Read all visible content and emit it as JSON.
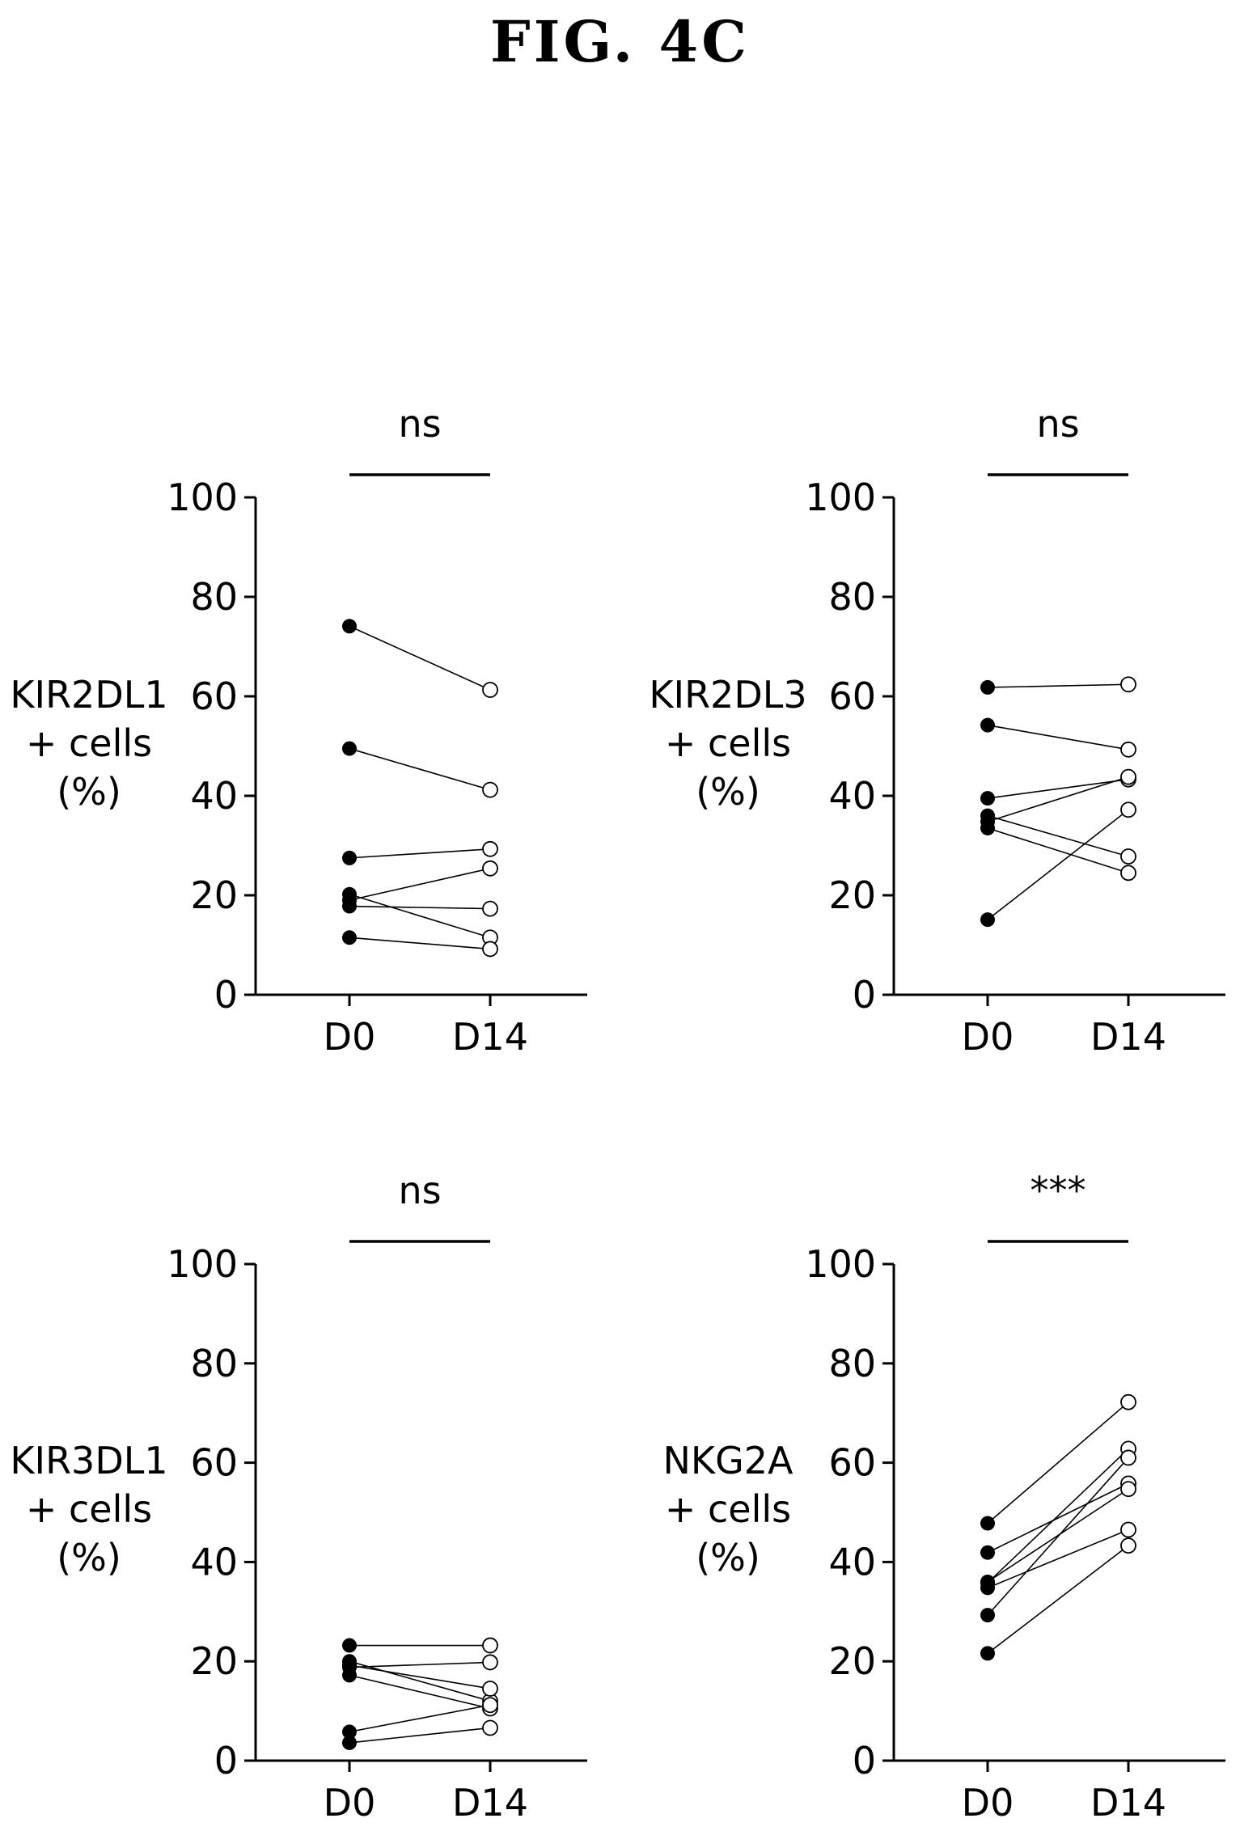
{
  "figure_title": "FIG. 4C",
  "chart_data": [
    {
      "type": "scatter",
      "paired": true,
      "title": "",
      "ylabel_lines": [
        "KIR2DL1",
        "+ cells",
        "(%)"
      ],
      "categories": [
        "D0",
        "D14"
      ],
      "ylim": [
        0,
        100
      ],
      "yticks": [
        0,
        20,
        40,
        60,
        80,
        100
      ],
      "significance": "ns",
      "pairs": [
        {
          "D0": 74.1,
          "D14": 61.3
        },
        {
          "D0": 49.5,
          "D14": 41.2
        },
        {
          "D0": 27.5,
          "D14": 29.3
        },
        {
          "D0": 20.2,
          "D14": 11.5
        },
        {
          "D0": 19.0,
          "D14": 25.4
        },
        {
          "D0": 17.8,
          "D14": 17.3
        },
        {
          "D0": 11.5,
          "D14": 9.2
        }
      ]
    },
    {
      "type": "scatter",
      "paired": true,
      "title": "",
      "ylabel_lines": [
        "KIR2DL3",
        "+ cells",
        "(%)"
      ],
      "categories": [
        "D0",
        "D14"
      ],
      "ylim": [
        0,
        100
      ],
      "yticks": [
        0,
        20,
        40,
        60,
        80,
        100
      ],
      "significance": "ns",
      "pairs": [
        {
          "D0": 61.8,
          "D14": 62.4
        },
        {
          "D0": 54.2,
          "D14": 49.3
        },
        {
          "D0": 39.5,
          "D14": 43.3
        },
        {
          "D0": 36.0,
          "D14": 27.8
        },
        {
          "D0": 34.8,
          "D14": 43.8
        },
        {
          "D0": 33.5,
          "D14": 24.5
        },
        {
          "D0": 15.1,
          "D14": 37.2
        }
      ]
    },
    {
      "type": "scatter",
      "paired": true,
      "title": "",
      "ylabel_lines": [
        "KIR3DL1",
        "+ cells",
        "(%)"
      ],
      "categories": [
        "D0",
        "D14"
      ],
      "ylim": [
        0,
        100
      ],
      "yticks": [
        0,
        20,
        40,
        60,
        80,
        100
      ],
      "significance": "ns",
      "pairs": [
        {
          "D0": 23.2,
          "D14": 23.2
        },
        {
          "D0": 20.0,
          "D14": 12.0
        },
        {
          "D0": 18.8,
          "D14": 19.8
        },
        {
          "D0": 17.2,
          "D14": 10.5
        },
        {
          "D0": 5.8,
          "D14": 11.2
        },
        {
          "D0": 3.6,
          "D14": 6.6
        },
        {
          "D0": 19.2,
          "D14": 14.5
        }
      ]
    },
    {
      "type": "scatter",
      "paired": true,
      "title": "",
      "ylabel_lines": [
        "NKG2A",
        "+ cells",
        "(%)"
      ],
      "categories": [
        "D0",
        "D14"
      ],
      "ylim": [
        0,
        100
      ],
      "yticks": [
        0,
        20,
        40,
        60,
        80,
        100
      ],
      "significance": "***",
      "pairs": [
        {
          "D0": 47.8,
          "D14": 72.2
        },
        {
          "D0": 41.9,
          "D14": 55.8
        },
        {
          "D0": 35.8,
          "D14": 62.8
        },
        {
          "D0": 34.8,
          "D14": 46.5
        },
        {
          "D0": 29.3,
          "D14": 61.0
        },
        {
          "D0": 21.6,
          "D14": 43.3
        },
        {
          "D0": 36.0,
          "D14": 54.7
        }
      ]
    }
  ]
}
